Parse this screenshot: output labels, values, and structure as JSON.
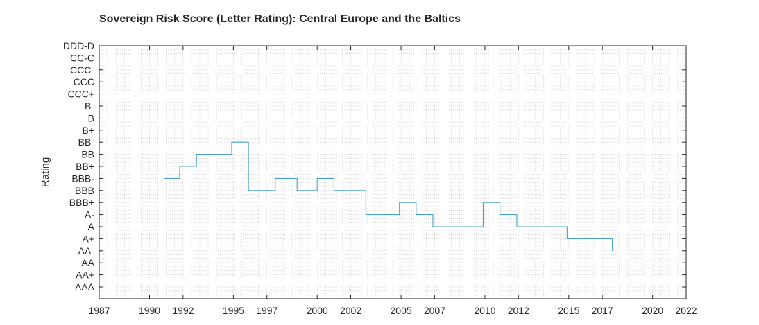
{
  "chart_data": {
    "type": "line",
    "title": "Sovereign Risk Score (Letter Rating): Central Europe and the Baltics",
    "xlabel": "",
    "ylabel": "Rating",
    "xlim": [
      1987,
      2022
    ],
    "x_ticks": [
      1987,
      1990,
      1992,
      1995,
      1997,
      2000,
      2002,
      2005,
      2007,
      2010,
      2012,
      2015,
      2017,
      2020,
      2022
    ],
    "y_categories_top_to_bottom": [
      "DDD-D",
      "CC-C",
      "CCC-",
      "CCC",
      "CCC+",
      "B-",
      "B",
      "B+",
      "BB-",
      "BB",
      "BB+",
      "BBB-",
      "BBB",
      "BBB+",
      "A-",
      "A",
      "A+",
      "AA-",
      "AA",
      "AA+",
      "AAA"
    ],
    "grid": "minor-dotted",
    "line_style": "step",
    "series_color": "#4a9fc6",
    "series": [
      {
        "x": [
          1990.9,
          1991.8,
          1992.8,
          1994.9,
          1995.9,
          1997.5,
          1998.8,
          2000.0,
          2001.0,
          2002.9,
          2004.9,
          2005.9,
          2006.9,
          2009.9,
          2010.9,
          2011.9,
          2014.9,
          2017.6
        ],
        "y": [
          "BBB-",
          "BB+",
          "BB",
          "BB-",
          "BBB",
          "BBB-",
          "BBB",
          "BBB-",
          "BBB",
          "A-",
          "BBB+",
          "A-",
          "A",
          "BBB+",
          "A-",
          "A",
          "A+",
          "AA-"
        ]
      }
    ]
  }
}
